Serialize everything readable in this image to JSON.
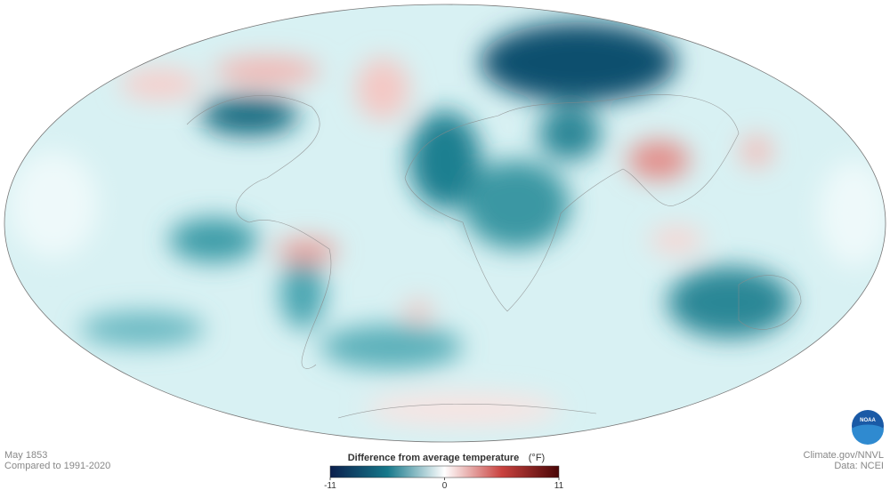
{
  "map": {
    "date": "May 1853",
    "baseline": "Compared to 1991-2020",
    "legend": {
      "title": "Difference from average temperature",
      "unit": "(°F)",
      "range": [
        -11,
        11
      ],
      "ticks": [
        -11,
        0,
        11
      ]
    },
    "credits": {
      "source": "Climate.gov/NNVL",
      "data": "Data: NCEI"
    },
    "logo": "NOAA"
  }
}
